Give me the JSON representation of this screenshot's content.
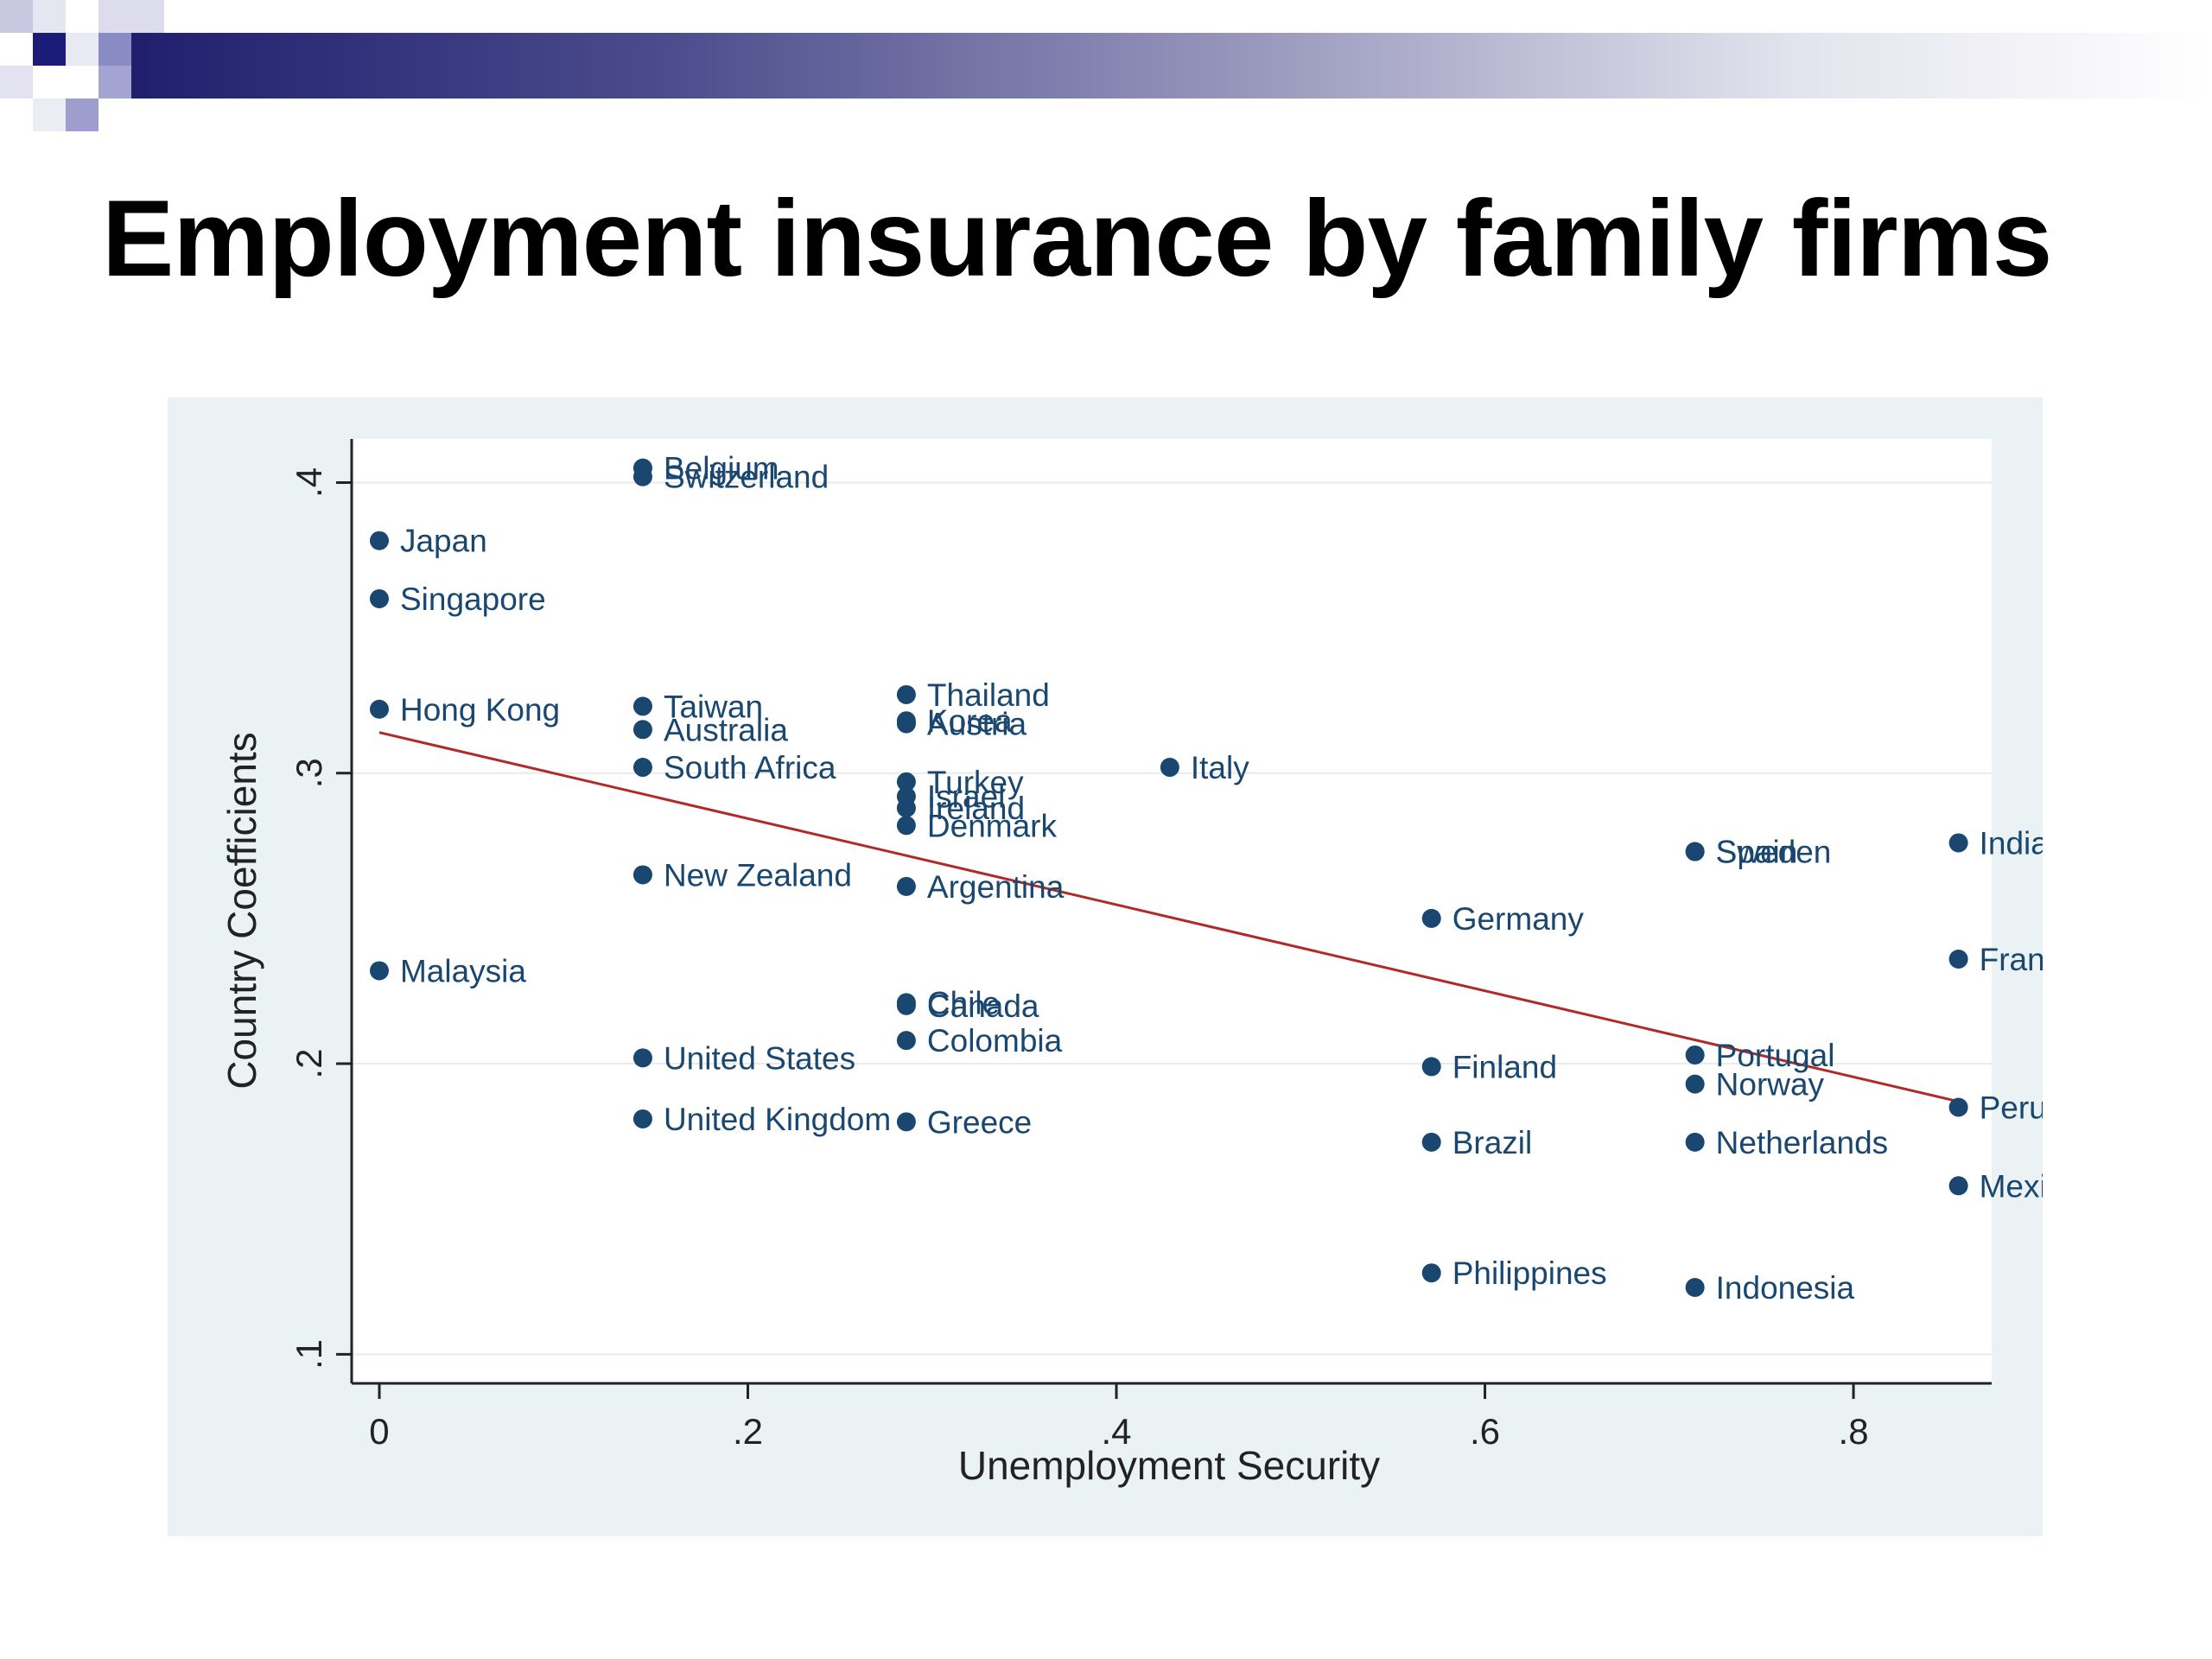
{
  "slide": {
    "title": "Employment insurance by family firms"
  },
  "colors": {
    "marker": "#1a476f",
    "fit_line": "#b02a2a",
    "plot_bg": "#ffffff",
    "chart_bg": "#eaf2f3",
    "banner_dark": "#1f1f6e",
    "banner_light": "#9b9bbf"
  },
  "chart_data": {
    "type": "scatter",
    "title": "",
    "xlabel": "Unemployment Security",
    "ylabel": "Country Coefficients",
    "xlim": [
      -0.015,
      0.875
    ],
    "ylim": [
      0.09,
      0.415
    ],
    "xticks": [
      0,
      0.2,
      0.4,
      0.6,
      0.8
    ],
    "xtick_labels": [
      "0",
      ".2",
      ".4",
      ".6",
      ".8"
    ],
    "yticks": [
      0.1,
      0.2,
      0.3,
      0.4
    ],
    "ytick_labels": [
      ".1",
      ".2",
      ".3",
      ".4"
    ],
    "grid": "horizontal",
    "fit_line": {
      "x": [
        0,
        0.857
      ],
      "y": [
        0.314,
        0.187
      ]
    },
    "points": [
      {
        "label": "Belgium",
        "x": 0.143,
        "y": 0.405
      },
      {
        "label": "Switzerland",
        "x": 0.143,
        "y": 0.402
      },
      {
        "label": "Japan",
        "x": 0.0,
        "y": 0.38
      },
      {
        "label": "Singapore",
        "x": 0.0,
        "y": 0.36
      },
      {
        "label": "Hong Kong",
        "x": 0.0,
        "y": 0.322
      },
      {
        "label": "Taiwan",
        "x": 0.143,
        "y": 0.323
      },
      {
        "label": "Australia",
        "x": 0.143,
        "y": 0.315
      },
      {
        "label": "South Africa",
        "x": 0.143,
        "y": 0.302
      },
      {
        "label": "New Zealand",
        "x": 0.143,
        "y": 0.265
      },
      {
        "label": "Malaysia",
        "x": 0.0,
        "y": 0.232
      },
      {
        "label": "United States",
        "x": 0.143,
        "y": 0.202
      },
      {
        "label": "United Kingdom",
        "x": 0.143,
        "y": 0.181
      },
      {
        "label": "Thailand",
        "x": 0.286,
        "y": 0.327
      },
      {
        "label": "Korea",
        "x": 0.286,
        "y": 0.318
      },
      {
        "label": "Austria",
        "x": 0.286,
        "y": 0.317
      },
      {
        "label": "Turkey",
        "x": 0.286,
        "y": 0.297
      },
      {
        "label": "Israel",
        "x": 0.286,
        "y": 0.292
      },
      {
        "label": "Ireland",
        "x": 0.286,
        "y": 0.288
      },
      {
        "label": "Denmark",
        "x": 0.286,
        "y": 0.282
      },
      {
        "label": "Argentina",
        "x": 0.286,
        "y": 0.261
      },
      {
        "label": "Chile",
        "x": 0.286,
        "y": 0.221
      },
      {
        "label": "Canada",
        "x": 0.286,
        "y": 0.22
      },
      {
        "label": "Colombia",
        "x": 0.286,
        "y": 0.208
      },
      {
        "label": "Greece",
        "x": 0.286,
        "y": 0.18
      },
      {
        "label": "Italy",
        "x": 0.429,
        "y": 0.302
      },
      {
        "label": "Germany",
        "x": 0.571,
        "y": 0.25
      },
      {
        "label": "Finland",
        "x": 0.571,
        "y": 0.199
      },
      {
        "label": "Brazil",
        "x": 0.571,
        "y": 0.173
      },
      {
        "label": "Philippines",
        "x": 0.571,
        "y": 0.128
      },
      {
        "label": "Spain",
        "x": 0.714,
        "y": 0.273
      },
      {
        "label": "Sweden",
        "x": 0.714,
        "y": 0.273
      },
      {
        "label": "Portugal",
        "x": 0.714,
        "y": 0.203
      },
      {
        "label": "Norway",
        "x": 0.714,
        "y": 0.193
      },
      {
        "label": "Netherlands",
        "x": 0.714,
        "y": 0.173
      },
      {
        "label": "Indonesia",
        "x": 0.714,
        "y": 0.123
      },
      {
        "label": "India",
        "x": 0.857,
        "y": 0.276
      },
      {
        "label": "France",
        "x": 0.857,
        "y": 0.236
      },
      {
        "label": "Peru",
        "x": 0.857,
        "y": 0.185
      },
      {
        "label": "Mexico",
        "x": 0.857,
        "y": 0.158
      }
    ]
  }
}
